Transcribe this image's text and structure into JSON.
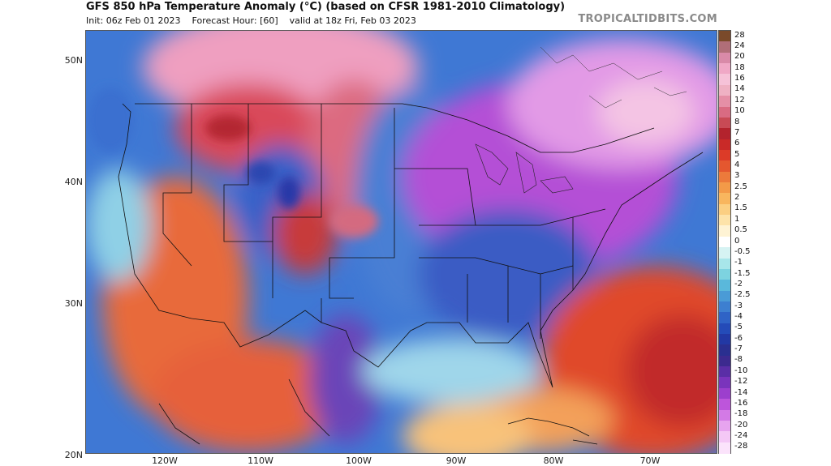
{
  "header": {
    "title": "GFS 850 hPa Temperature Anomaly (°C) (based on CFSR 1981-2010 Climatology)",
    "init": "Init: 06z Feb 01 2023",
    "forecast_hour": "Forecast Hour: [60]",
    "valid": "valid at 18z Fri, Feb 03 2023",
    "brand": "TROPICALTIDBITS.COM"
  },
  "map": {
    "lat_labels": [
      "50N",
      "40N",
      "30N",
      "20N"
    ],
    "lon_labels": [
      "120W",
      "110W",
      "100W",
      "90W",
      "80W",
      "70W"
    ]
  },
  "legend": {
    "levels": [
      "28",
      "24",
      "20",
      "18",
      "16",
      "14",
      "12",
      "10",
      "8",
      "7",
      "6",
      "5",
      "4",
      "3",
      "2.5",
      "2",
      "1.5",
      "1",
      "0.5",
      "0",
      "-0.5",
      "-1",
      "-1.5",
      "-2",
      "-2.5",
      "-3",
      "-4",
      "-5",
      "-6",
      "-7",
      "-8",
      "-10",
      "-12",
      "-14",
      "-16",
      "-18",
      "-20",
      "-24",
      "-28"
    ],
    "colors": [
      "#7a4a2a",
      "#b06e78",
      "#d98aa8",
      "#f0a8c6",
      "#f6c2d8",
      "#efb1c3",
      "#e58fa6",
      "#d96b82",
      "#c84a55",
      "#b3232d",
      "#c92a28",
      "#dc3b28",
      "#e4572f",
      "#ec7a3b",
      "#f39a48",
      "#f8b65e",
      "#fbcf82",
      "#fde3a9",
      "#fef3d4",
      "#ffffff",
      "#d6f3f3",
      "#a8e6ea",
      "#7dd3e0",
      "#5ab8db",
      "#4a9bd6",
      "#3d7fd0",
      "#2f63c6",
      "#244bb8",
      "#2238a4",
      "#2a2f90",
      "#3c2a8f",
      "#5a2ea6",
      "#7a34bc",
      "#9c3fcd",
      "#bd55db",
      "#d37ae6",
      "#e7a4ef",
      "#f4c8f6",
      "#fbe3fb"
    ]
  }
}
